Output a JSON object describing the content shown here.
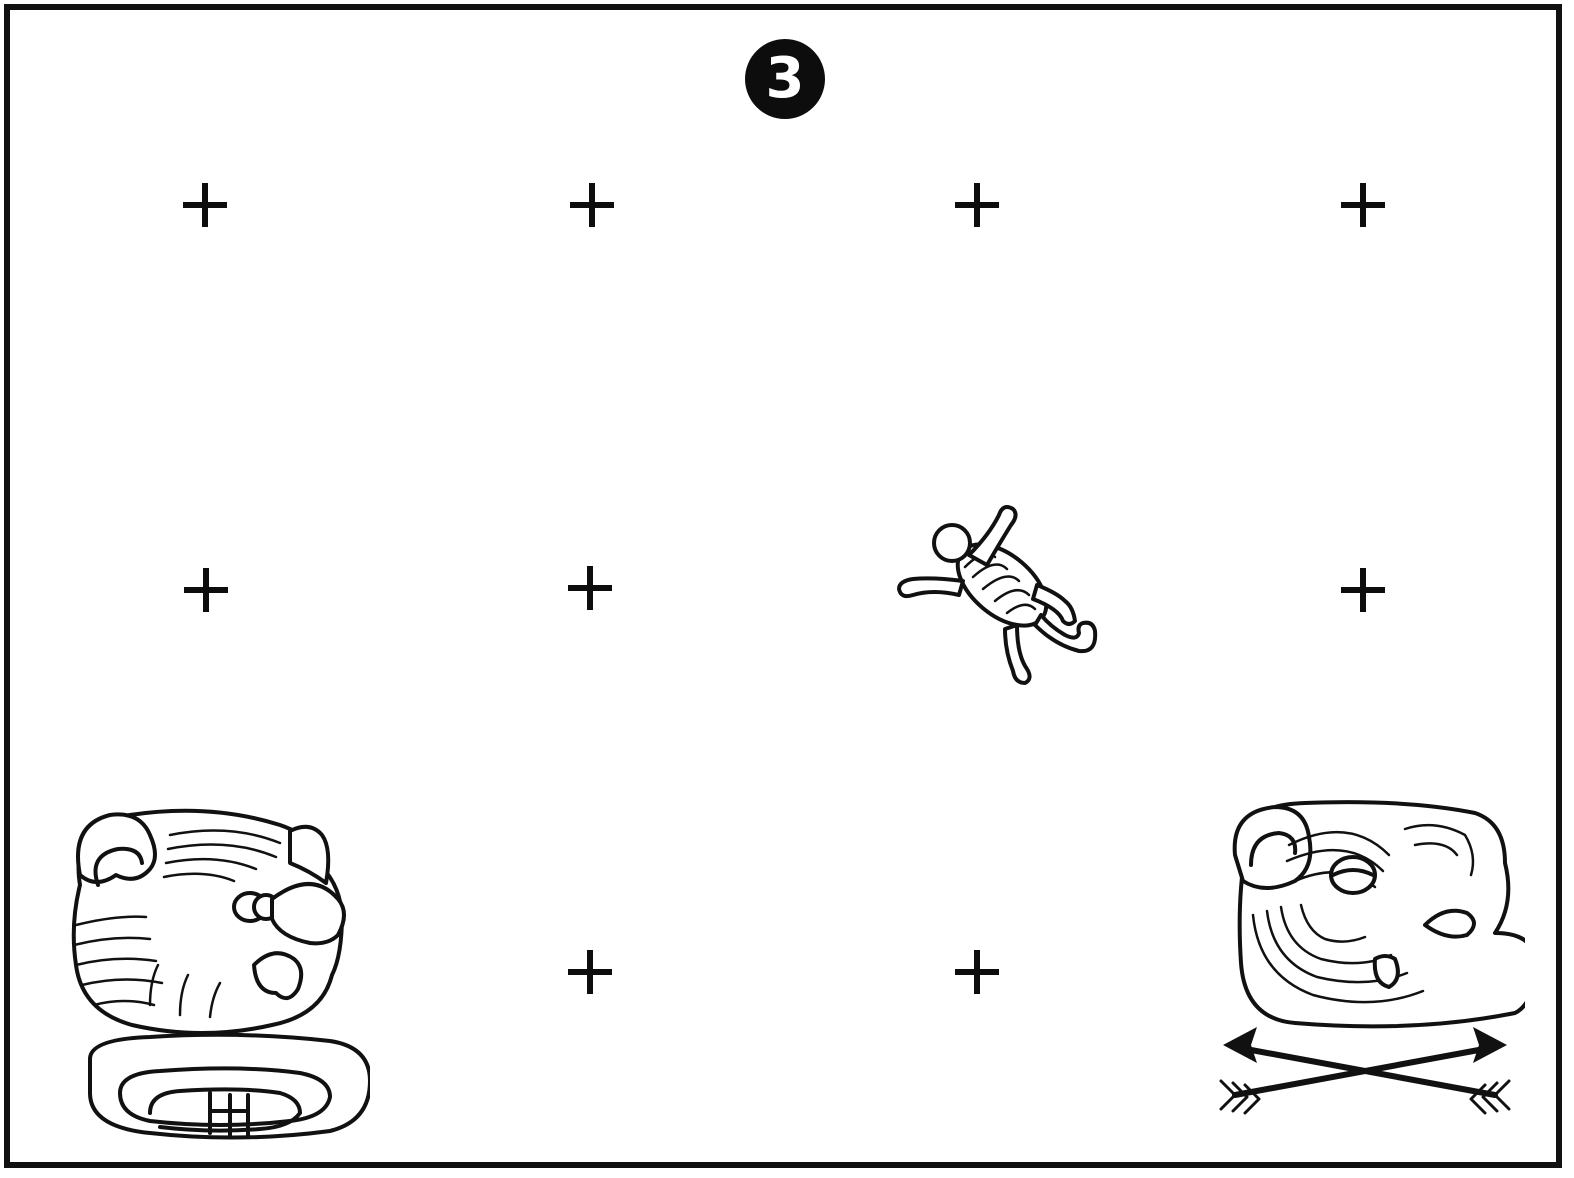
{
  "puzzle": {
    "step_number": "3",
    "colors": {
      "ink": "#111111",
      "background": "#ffffff"
    },
    "grid": {
      "columns": 4,
      "rows": 3,
      "cells": [
        [
          "plus",
          "plus",
          "plus",
          "plus"
        ],
        [
          "plus",
          "plus",
          "lizard-glyph",
          "plus"
        ],
        [
          "jaguar-day-glyph",
          "plus",
          "plus",
          "face-glyph-with-crossed-arrows"
        ]
      ]
    }
  }
}
